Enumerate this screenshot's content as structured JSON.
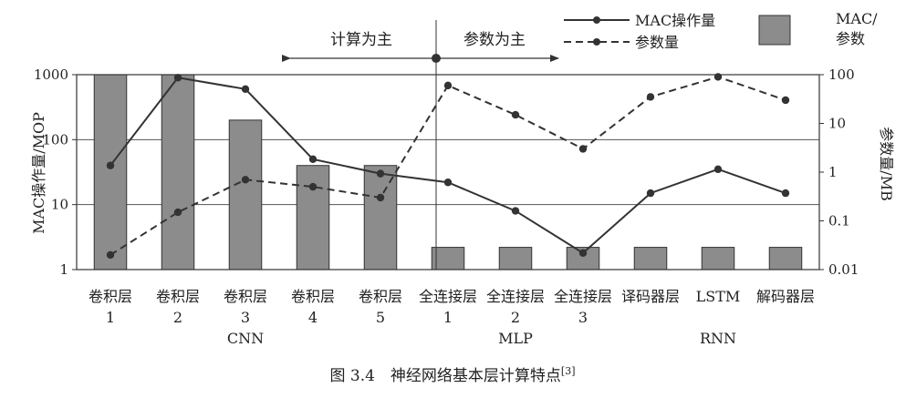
{
  "chart_data": {
    "type": "bar+line",
    "categories": [
      {
        "line1": "卷积层",
        "line2": "1"
      },
      {
        "line1": "卷积层",
        "line2": "2"
      },
      {
        "line1": "卷积层",
        "line2": "3"
      },
      {
        "line1": "卷积层",
        "line2": "4"
      },
      {
        "line1": "卷积层",
        "line2": "5"
      },
      {
        "line1": "全连接层",
        "line2": "1"
      },
      {
        "line1": "全连接层",
        "line2": "2"
      },
      {
        "line1": "全连接层",
        "line2": "3"
      },
      {
        "line1": "译码器层",
        "line2": ""
      },
      {
        "line1": "LSTM",
        "line2": ""
      },
      {
        "line1": "解码器层",
        "line2": ""
      }
    ],
    "groups": [
      {
        "label": "CNN",
        "from": 0,
        "to": 4
      },
      {
        "label": "MLP",
        "from": 5,
        "to": 7
      },
      {
        "label": "RNN",
        "from": 8,
        "to": 10
      }
    ],
    "bars": {
      "name": "MAC/参数",
      "values": [
        1000,
        1000,
        200,
        40,
        40,
        2.2,
        2.2,
        2.2,
        2.2,
        2.2,
        2.2
      ]
    },
    "series": [
      {
        "name": "MAC操作量",
        "style": "solid",
        "axis": "left",
        "values": [
          40,
          900,
          600,
          50,
          30,
          22,
          8,
          1.8,
          15,
          35,
          15
        ]
      },
      {
        "name": "参数量",
        "style": "dashed",
        "axis": "right",
        "values": [
          0.02,
          0.15,
          0.7,
          0.5,
          0.3,
          60,
          15,
          3,
          35,
          90,
          30
        ]
      }
    ],
    "y_left": {
      "label": "MAC操作量/MOP",
      "scale": "log",
      "lim": [
        1,
        1000
      ],
      "ticks": [
        "1",
        "10",
        "100",
        "1000"
      ]
    },
    "y_right": {
      "label": "参数量/MB",
      "scale": "log",
      "lim": [
        0.01,
        100
      ],
      "ticks": [
        "0.01",
        "0.1",
        "1",
        "10",
        "100"
      ]
    },
    "annotations": {
      "compute": "计算为主",
      "param": "参数为主"
    },
    "legend": {
      "mac": "MAC操作量",
      "param": "参数量",
      "bar_line1": "MAC/",
      "bar_line2": "参数"
    },
    "caption": {
      "text": "图 3.4　神经网络基本层计算特点",
      "ref": "[3]"
    },
    "colors": {
      "bar": "#8c8c8c",
      "line": "#333333"
    }
  }
}
